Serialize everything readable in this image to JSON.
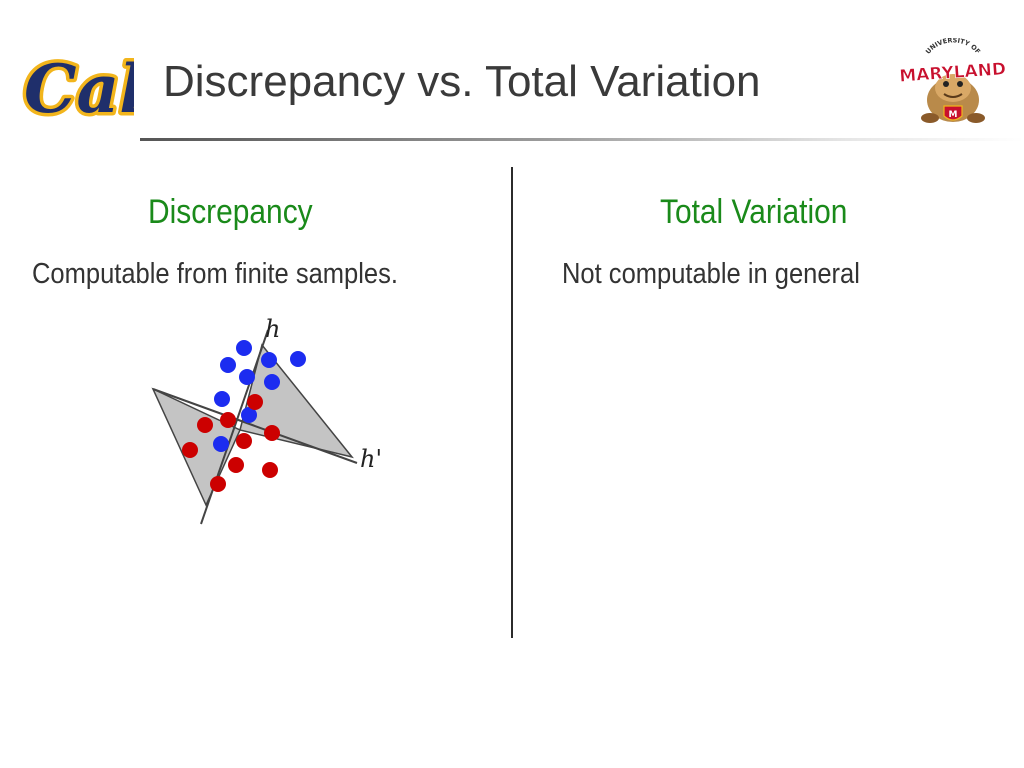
{
  "slide": {
    "title": "Discrepancy vs. Total Variation",
    "logos": {
      "left": {
        "name": "Cal",
        "text": "Cal",
        "color": "#1f2f6b",
        "accent": "#f2b51c"
      },
      "right": {
        "name": "University of Maryland",
        "arc_text": "UNIVERSITY OF",
        "text": "MARYLAND",
        "color": "#c8102e"
      }
    }
  },
  "columns": {
    "left": {
      "heading": "Discrepancy",
      "text": "Computable from finite samples."
    },
    "right": {
      "heading": "Total Variation",
      "text": "Not computable in general"
    }
  },
  "figure": {
    "labels": {
      "h": "h",
      "h_prime": "h'"
    },
    "colors": {
      "region": "#c4c4c4",
      "positive": "#1c2cf0",
      "negative": "#cc0000",
      "line": "#444444"
    }
  }
}
